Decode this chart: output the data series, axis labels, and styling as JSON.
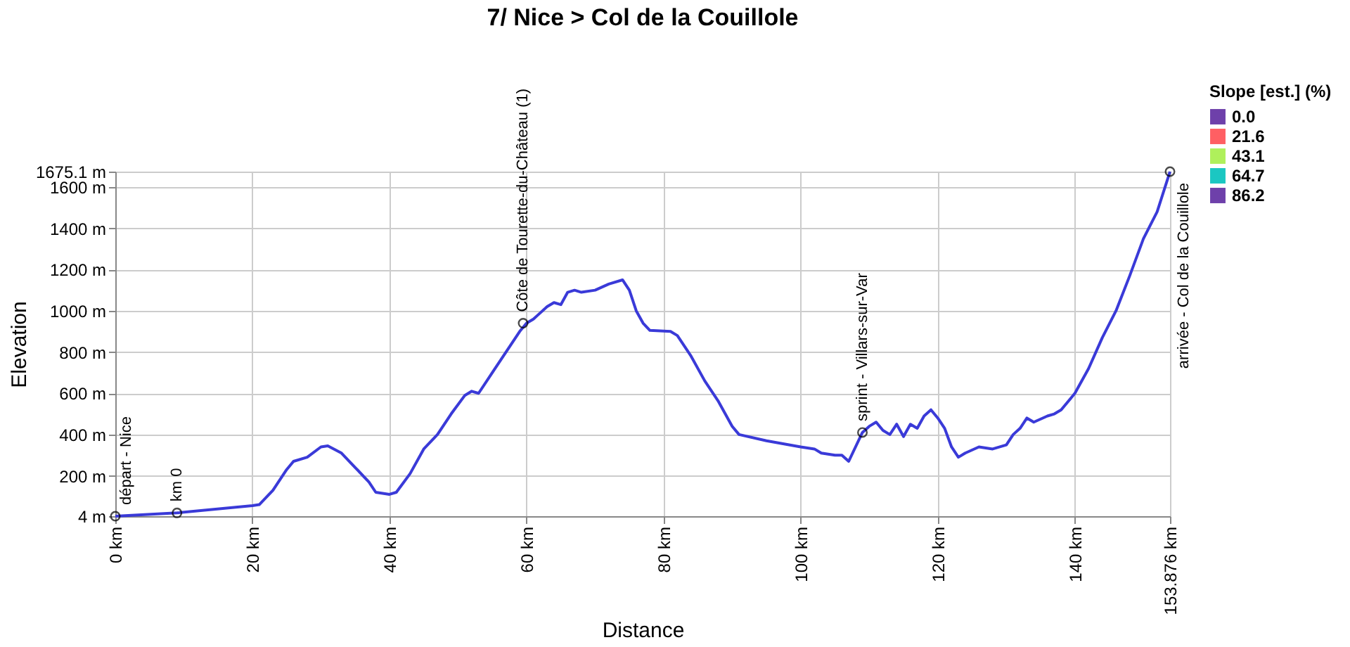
{
  "chart_data": {
    "type": "line",
    "title": "7/ Nice > Col de la Couillole",
    "xlabel": "Distance",
    "ylabel": "Elevation",
    "x": [
      0,
      9,
      20,
      21,
      23,
      25,
      26,
      28,
      30,
      31,
      33,
      35,
      37,
      38,
      40,
      41,
      43,
      45,
      47,
      49,
      51,
      52,
      53,
      55,
      57,
      59,
      60,
      61,
      62,
      63,
      64,
      65,
      66,
      67,
      68,
      70,
      72,
      74,
      75,
      76,
      77,
      78,
      81,
      82,
      84,
      86,
      88,
      90,
      91,
      95,
      100,
      102,
      103,
      105,
      106,
      107,
      109,
      110,
      111,
      112,
      113,
      114,
      115,
      116,
      117,
      118,
      119,
      120,
      121,
      122,
      123,
      124,
      126,
      128,
      130,
      131,
      132,
      133,
      134,
      136,
      137,
      138,
      140,
      142,
      144,
      146,
      148,
      150,
      152,
      153.876
    ],
    "series": [
      {
        "color": "#3a3ad8",
        "values": [
          4,
          20,
          55,
          60,
          130,
          230,
          270,
          290,
          340,
          345,
          310,
          240,
          170,
          120,
          110,
          120,
          210,
          330,
          400,
          500,
          590,
          610,
          600,
          700,
          800,
          900,
          940,
          960,
          990,
          1020,
          1040,
          1030,
          1090,
          1100,
          1090,
          1100,
          1130,
          1150,
          1100,
          1000,
          940,
          905,
          900,
          880,
          780,
          660,
          560,
          440,
          400,
          370,
          340,
          330,
          310,
          300,
          300,
          270,
          410,
          440,
          460,
          420,
          400,
          450,
          390,
          450,
          430,
          490,
          520,
          480,
          430,
          340,
          290,
          310,
          340,
          330,
          350,
          400,
          430,
          480,
          460,
          490,
          500,
          520,
          600,
          720,
          870,
          1000,
          1170,
          1350,
          1480,
          1675.1
        ]
      }
    ],
    "xlim": [
      0,
      153.876
    ],
    "ylim": [
      4,
      1675.1
    ],
    "xticks": [
      {
        "value": 0,
        "label": "0 km"
      },
      {
        "value": 20,
        "label": "20 km"
      },
      {
        "value": 40,
        "label": "40 km"
      },
      {
        "value": 60,
        "label": "60 km"
      },
      {
        "value": 80,
        "label": "80 km"
      },
      {
        "value": 100,
        "label": "100 km"
      },
      {
        "value": 120,
        "label": "120 km"
      },
      {
        "value": 140,
        "label": "140 km"
      },
      {
        "value": 153.876,
        "label": "153.876 km"
      }
    ],
    "yticks": [
      {
        "value": 4,
        "label": "4 m"
      },
      {
        "value": 200,
        "label": "200 m"
      },
      {
        "value": 400,
        "label": "400 m"
      },
      {
        "value": 600,
        "label": "600 m"
      },
      {
        "value": 800,
        "label": "800 m"
      },
      {
        "value": 1000,
        "label": "1000 m"
      },
      {
        "value": 1200,
        "label": "1200 m"
      },
      {
        "value": 1400,
        "label": "1400 m"
      },
      {
        "value": 1600,
        "label": "1600 m"
      },
      {
        "value": 1675.1,
        "label": "1675.1 m"
      }
    ],
    "grid": true,
    "clabel": "Slope [est.] (%)",
    "clim": [
      0,
      86.2
    ],
    "cticks": [
      {
        "value": 0,
        "label": "0.0"
      },
      {
        "value": 21.6,
        "label": "21.6"
      },
      {
        "value": 43.1,
        "label": "43.1"
      },
      {
        "value": 64.7,
        "label": "64.7"
      },
      {
        "value": 86.2,
        "label": "86.2"
      }
    ],
    "annotations": [
      {
        "text": "départ - Nice",
        "x": 0,
        "y": 4
      },
      {
        "text": "km 0",
        "x": 9,
        "y": 20
      },
      {
        "text": "Côte de Tourette-du-Château (1)",
        "x": 59.5,
        "y": 940
      },
      {
        "text": "sprint - Villars-sur-Var",
        "x": 109,
        "y": 410
      },
      {
        "text": "arrivée - Col de la Couillole",
        "x": 153.876,
        "y": 1675.1
      }
    ]
  }
}
